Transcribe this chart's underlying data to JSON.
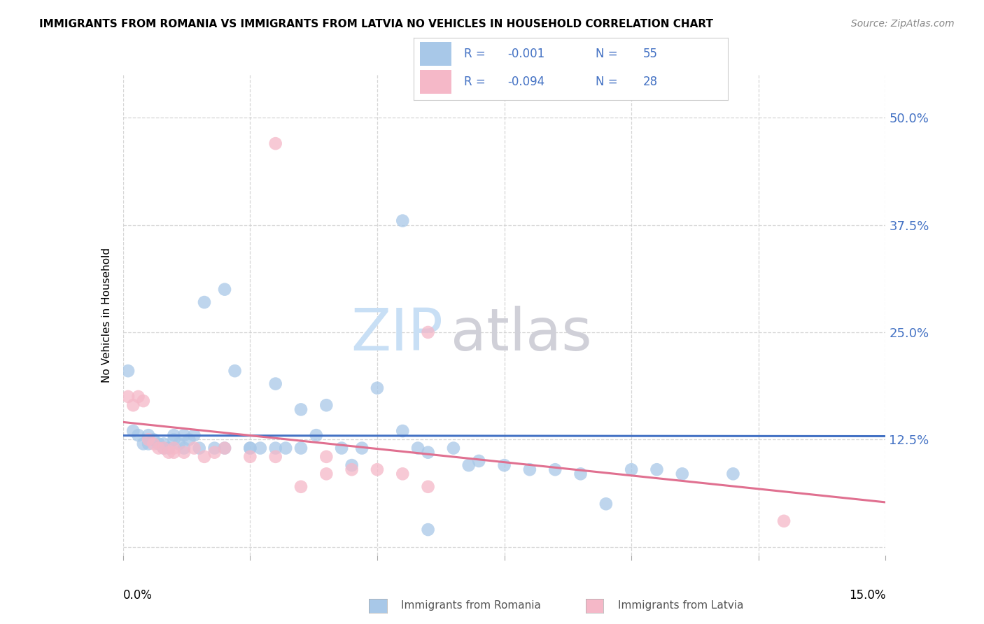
{
  "title": "IMMIGRANTS FROM ROMANIA VS IMMIGRANTS FROM LATVIA NO VEHICLES IN HOUSEHOLD CORRELATION CHART",
  "source": "Source: ZipAtlas.com",
  "ylabel": "No Vehicles in Household",
  "yticks": [
    0.0,
    0.125,
    0.25,
    0.375,
    0.5
  ],
  "ytick_labels": [
    "",
    "12.5%",
    "25.0%",
    "37.5%",
    "50.0%"
  ],
  "xlim": [
    0.0,
    0.15
  ],
  "ylim": [
    -0.01,
    0.55
  ],
  "romania_color": "#a8c8e8",
  "latvia_color": "#f5b8c8",
  "romania_line_color": "#4472c4",
  "latvia_line_color": "#e07090",
  "legend_text_color": "#4472c4",
  "right_axis_color": "#4472c4",
  "watermark_zip_color": "#c8dff5",
  "watermark_atlas_color": "#d0d0d8",
  "romania_scatter_x": [
    0.001,
    0.002,
    0.003,
    0.004,
    0.005,
    0.005,
    0.006,
    0.007,
    0.008,
    0.009,
    0.01,
    0.01,
    0.011,
    0.012,
    0.013,
    0.014,
    0.016,
    0.018,
    0.02,
    0.022,
    0.025,
    0.027,
    0.03,
    0.032,
    0.035,
    0.038,
    0.04,
    0.043,
    0.047,
    0.05,
    0.055,
    0.058,
    0.06,
    0.065,
    0.068,
    0.07,
    0.075,
    0.08,
    0.085,
    0.09,
    0.095,
    0.1,
    0.105,
    0.11,
    0.12,
    0.055,
    0.035,
    0.025,
    0.015,
    0.008,
    0.012,
    0.02,
    0.03,
    0.045,
    0.06
  ],
  "romania_scatter_y": [
    0.205,
    0.135,
    0.13,
    0.12,
    0.13,
    0.12,
    0.125,
    0.12,
    0.12,
    0.115,
    0.13,
    0.125,
    0.12,
    0.13,
    0.125,
    0.13,
    0.285,
    0.115,
    0.3,
    0.205,
    0.115,
    0.115,
    0.19,
    0.115,
    0.115,
    0.13,
    0.165,
    0.115,
    0.115,
    0.185,
    0.135,
    0.115,
    0.11,
    0.115,
    0.095,
    0.1,
    0.095,
    0.09,
    0.09,
    0.085,
    0.05,
    0.09,
    0.09,
    0.085,
    0.085,
    0.38,
    0.16,
    0.115,
    0.115,
    0.115,
    0.115,
    0.115,
    0.115,
    0.095,
    0.02
  ],
  "latvia_scatter_x": [
    0.001,
    0.002,
    0.003,
    0.004,
    0.005,
    0.006,
    0.007,
    0.008,
    0.009,
    0.01,
    0.01,
    0.012,
    0.014,
    0.016,
    0.018,
    0.02,
    0.025,
    0.03,
    0.035,
    0.04,
    0.045,
    0.05,
    0.06,
    0.13,
    0.06,
    0.03,
    0.04,
    0.055
  ],
  "latvia_scatter_y": [
    0.175,
    0.165,
    0.175,
    0.17,
    0.125,
    0.12,
    0.115,
    0.115,
    0.11,
    0.115,
    0.11,
    0.11,
    0.115,
    0.105,
    0.11,
    0.115,
    0.105,
    0.105,
    0.07,
    0.105,
    0.09,
    0.09,
    0.25,
    0.03,
    0.07,
    0.47,
    0.085,
    0.085
  ]
}
